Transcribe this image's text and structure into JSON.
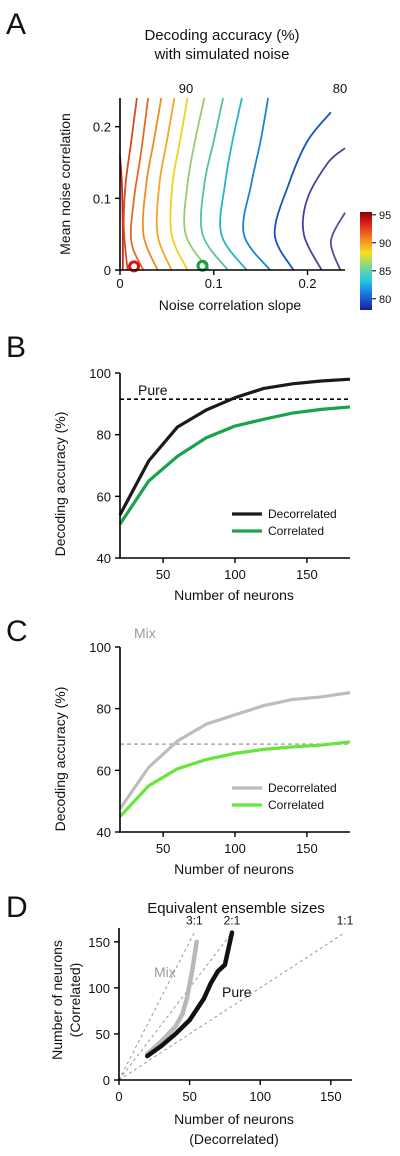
{
  "panels": {
    "A": {
      "letter": "A",
      "title_line1": "Decoding accuracy (%)",
      "title_line2": "with simulated noise",
      "xlabel": "Noise correlation slope",
      "ylabel": "Mean noise correlation",
      "contour_label_90": "90",
      "contour_label_80": "80",
      "colorbar_ticks": [
        "95",
        "90",
        "85",
        "80"
      ]
    },
    "B": {
      "letter": "B",
      "inline_label": "Pure",
      "xlabel": "Number of neurons",
      "ylabel": "Decoding accuracy (%)"
    },
    "C": {
      "letter": "C",
      "inline_label": "Mix",
      "xlabel": "Number of neurons",
      "ylabel": "Decoding accuracy (%)"
    },
    "D": {
      "letter": "D",
      "title": "Equivalent ensemble sizes",
      "xlabel_line1": "Number of neurons",
      "xlabel_line2": "(Decorrelated)",
      "ylabel_line1": "Number of neurons",
      "ylabel_line2": "(Correlated)",
      "label_mix": "Mix",
      "label_pure": "Pure"
    }
  },
  "chart_data": [
    {
      "id": "A",
      "type": "heatmap",
      "title": "Decoding accuracy (%) with simulated noise",
      "xlabel": "Noise correlation slope",
      "ylabel": "Mean noise correlation",
      "xlim": [
        0,
        0.24
      ],
      "ylim": [
        0,
        0.24
      ],
      "xticks": [
        "0",
        "0.1",
        "0.2"
      ],
      "yticks": [
        "0",
        "0.1",
        "0.2"
      ],
      "colorbar": {
        "range": [
          78,
          95.5
        ],
        "ticks": [
          95,
          90,
          85,
          80
        ]
      },
      "contours": [
        {
          "level": 94,
          "color": "#c8281c",
          "points": [
            [
              0.003,
              0.0
            ],
            [
              0.003,
              0.06
            ],
            [
              0.002,
              0.12
            ],
            [
              0.0,
              0.16
            ]
          ]
        },
        {
          "level": 93,
          "color": "#d84a22",
          "points": [
            [
              0.008,
              0.0
            ],
            [
              0.004,
              0.06
            ],
            [
              0.006,
              0.12
            ],
            [
              0.012,
              0.18
            ],
            [
              0.018,
              0.24
            ]
          ]
        },
        {
          "level": 92,
          "color": "#e46a26",
          "points": [
            [
              0.025,
              0.0
            ],
            [
              0.012,
              0.04
            ],
            [
              0.015,
              0.1
            ],
            [
              0.022,
              0.16
            ],
            [
              0.03,
              0.24
            ]
          ]
        },
        {
          "level": 91,
          "color": "#ee8c2a",
          "points": [
            [
              0.04,
              0.0
            ],
            [
              0.025,
              0.05
            ],
            [
              0.028,
              0.12
            ],
            [
              0.036,
              0.18
            ],
            [
              0.044,
              0.24
            ]
          ]
        },
        {
          "level": 90,
          "color": "#f4a52c",
          "points": [
            [
              0.055,
              0.0
            ],
            [
              0.04,
              0.05
            ],
            [
              0.042,
              0.12
            ],
            [
              0.05,
              0.18
            ],
            [
              0.058,
              0.24
            ]
          ]
        },
        {
          "level": 89,
          "color": "#f0d020",
          "points": [
            [
              0.072,
              0.0
            ],
            [
              0.055,
              0.05
            ],
            [
              0.056,
              0.12
            ],
            [
              0.064,
              0.18
            ],
            [
              0.072,
              0.24
            ]
          ]
        },
        {
          "level": 88,
          "color": "#9cc874",
          "points": [
            [
              0.095,
              0.0
            ],
            [
              0.07,
              0.05
            ],
            [
              0.072,
              0.12
            ],
            [
              0.08,
              0.18
            ],
            [
              0.09,
              0.24
            ]
          ]
        },
        {
          "level": 87,
          "color": "#58c0a0",
          "points": [
            [
              0.115,
              0.0
            ],
            [
              0.088,
              0.05
            ],
            [
              0.09,
              0.12
            ],
            [
              0.1,
              0.18
            ],
            [
              0.11,
              0.24
            ]
          ]
        },
        {
          "level": 86,
          "color": "#26b4cc",
          "points": [
            [
              0.135,
              0.0
            ],
            [
              0.108,
              0.05
            ],
            [
              0.112,
              0.12
            ],
            [
              0.12,
              0.18
            ],
            [
              0.13,
              0.24
            ]
          ]
        },
        {
          "level": 84,
          "color": "#1a84d4",
          "points": [
            [
              0.16,
              0.0
            ],
            [
              0.132,
              0.05
            ],
            [
              0.14,
              0.12
            ],
            [
              0.15,
              0.18
            ],
            [
              0.158,
              0.24
            ]
          ]
        },
        {
          "level": 82,
          "color": "#1656b8",
          "points": [
            [
              0.185,
              0.0
            ],
            [
              0.165,
              0.05
            ],
            [
              0.18,
              0.12
            ],
            [
              0.2,
              0.18
            ],
            [
              0.225,
              0.22
            ]
          ]
        },
        {
          "level": 80,
          "color": "#44449a",
          "points": [
            [
              0.215,
              0.0
            ],
            [
              0.196,
              0.05
            ],
            [
              0.2,
              0.1
            ],
            [
              0.222,
              0.15
            ],
            [
              0.24,
              0.17
            ]
          ]
        },
        {
          "level": 79,
          "color": "#5a4c96",
          "points": [
            [
              0.235,
              0.0
            ],
            [
              0.225,
              0.04
            ],
            [
              0.24,
              0.08
            ]
          ]
        }
      ],
      "markers": [
        {
          "x": 0.015,
          "y": 0.005,
          "color": "#e01010"
        },
        {
          "x": 0.088,
          "y": 0.006,
          "color": "#18a048"
        }
      ]
    },
    {
      "id": "B",
      "type": "line",
      "xlabel": "Number of neurons",
      "ylabel": "Decoding accuracy (%)",
      "xlim": [
        20,
        180
      ],
      "ylim": [
        40,
        100
      ],
      "xticks": [
        50,
        100,
        150
      ],
      "yticks": [
        40,
        60,
        80,
        100
      ],
      "x": [
        20,
        40,
        60,
        80,
        100,
        120,
        140,
        160,
        180
      ],
      "series": [
        {
          "name": "Decorrelated",
          "color": "#1a1a1a",
          "values": [
            54,
            71.5,
            82.5,
            88,
            92,
            95,
            96.5,
            97.4,
            98
          ]
        },
        {
          "name": "Correlated",
          "color": "#1aa34a",
          "values": [
            51,
            65,
            73,
            79,
            82.8,
            85,
            87,
            88.2,
            89
          ]
        }
      ],
      "hline": {
        "y": 91.5,
        "color": "#000000",
        "dashed": true
      },
      "legend": "bottom-right"
    },
    {
      "id": "C",
      "type": "line",
      "xlabel": "Number of neurons",
      "ylabel": "Decoding accuracy (%)",
      "xlim": [
        20,
        180
      ],
      "ylim": [
        40,
        100
      ],
      "xticks": [
        50,
        100,
        150
      ],
      "yticks": [
        40,
        60,
        80,
        100
      ],
      "x": [
        20,
        40,
        60,
        80,
        100,
        120,
        140,
        160,
        180
      ],
      "series": [
        {
          "name": "Decorrelated",
          "color": "#bdbdbd",
          "values": [
            47.5,
            61,
            69.5,
            75,
            78,
            81,
            83,
            83.8,
            85.2
          ]
        },
        {
          "name": "Correlated",
          "color": "#66e63a",
          "values": [
            45,
            55,
            60.5,
            63.5,
            65.5,
            66.8,
            67.6,
            68.2,
            69.2
          ]
        }
      ],
      "hline": {
        "y": 68.5,
        "color": "#aaaaaa",
        "dashed": true
      },
      "legend": "bottom-right"
    },
    {
      "id": "D",
      "type": "line",
      "title": "Equivalent ensemble sizes",
      "xlabel": "Number of neurons (Decorrelated)",
      "ylabel": "Number of neurons (Correlated)",
      "xlim": [
        0,
        165
      ],
      "ylim": [
        0,
        165
      ],
      "xticks": [
        0,
        50,
        100,
        150
      ],
      "yticks": [
        0,
        50,
        100,
        150
      ],
      "series": [
        {
          "name": "Pure",
          "color": "#111111",
          "x": [
            20,
            30,
            40,
            50,
            60,
            65,
            70,
            75,
            80
          ],
          "values": [
            26,
            37,
            50,
            65,
            88,
            105,
            118,
            125,
            160
          ]
        },
        {
          "name": "Mix",
          "color": "#b8b8b8",
          "x": [
            20,
            30,
            40,
            45,
            48,
            52,
            55
          ],
          "values": [
            28,
            42,
            58,
            72,
            88,
            120,
            150
          ]
        }
      ],
      "reference_lines": [
        {
          "label": "3:1",
          "slope": 3
        },
        {
          "label": "2:1",
          "slope": 2
        },
        {
          "label": "1:1",
          "slope": 1
        }
      ]
    }
  ]
}
